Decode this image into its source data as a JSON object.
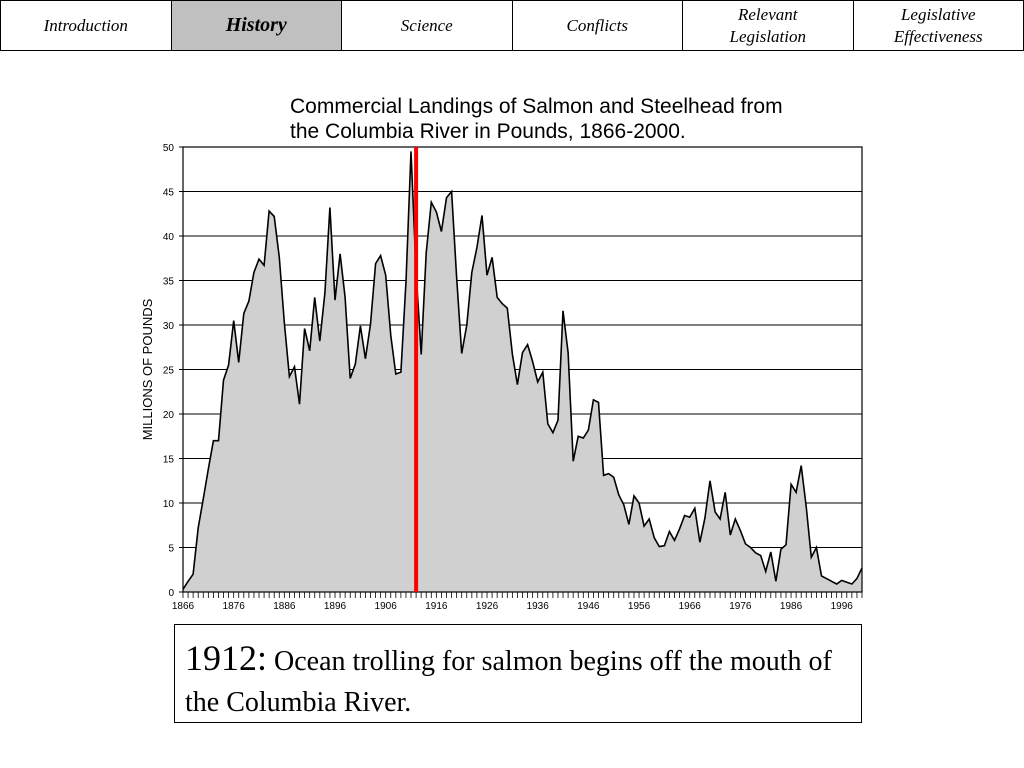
{
  "nav": {
    "tabs": [
      {
        "label": "Introduction",
        "active": false
      },
      {
        "label": "History",
        "active": true
      },
      {
        "label": "Science",
        "active": false
      },
      {
        "label": "Conflicts",
        "active": false
      },
      {
        "label": "Relevant\nLegislation",
        "active": false
      },
      {
        "label": "Legislative\nEffectiveness",
        "active": false
      }
    ]
  },
  "chart_data": {
    "type": "area",
    "title": "Commercial Landings of Salmon and Steelhead from\n the Columbia River in Pounds, 1866-2000.",
    "xlabel": "",
    "ylabel": "MILLIONS OF POUNDS",
    "ylim": [
      0,
      50
    ],
    "xlim": [
      1866,
      2000
    ],
    "yticks": [
      0,
      5,
      10,
      15,
      20,
      25,
      30,
      35,
      40,
      45,
      50
    ],
    "xticks": [
      1866,
      1876,
      1886,
      1896,
      1906,
      1916,
      1926,
      1936,
      1946,
      1956,
      1966,
      1976,
      1986,
      1996
    ],
    "grid": true,
    "fill_color": "#d0d0d0",
    "line_color": "#000000",
    "marker_color": "#ff0000",
    "marker_year": 1912,
    "series": [
      {
        "x": [
          1866,
          1867,
          1868,
          1869,
          1870,
          1871,
          1872,
          1873,
          1874,
          1875,
          1876,
          1877,
          1878,
          1879,
          1880,
          1881,
          1882,
          1883,
          1884,
          1885,
          1886,
          1887,
          1888,
          1889,
          1890,
          1891,
          1892,
          1893,
          1894,
          1895,
          1896,
          1897,
          1898,
          1899,
          1900,
          1901,
          1902,
          1903,
          1904,
          1905,
          1906,
          1907,
          1908,
          1909,
          1910,
          1911,
          1912,
          1913,
          1914,
          1915,
          1916,
          1917,
          1918,
          1919,
          1920,
          1921,
          1922,
          1923,
          1924,
          1925,
          1926,
          1927,
          1928,
          1929,
          1930,
          1931,
          1932,
          1933,
          1934,
          1935,
          1936,
          1937,
          1938,
          1939,
          1940,
          1941,
          1942,
          1943,
          1944,
          1945,
          1946,
          1947,
          1948,
          1949,
          1950,
          1951,
          1952,
          1953,
          1954,
          1955,
          1956,
          1957,
          1958,
          1959,
          1960,
          1961,
          1962,
          1963,
          1964,
          1965,
          1966,
          1967,
          1968,
          1969,
          1970,
          1971,
          1972,
          1973,
          1974,
          1975,
          1976,
          1977,
          1978,
          1979,
          1980,
          1981,
          1982,
          1983,
          1984,
          1985,
          1986,
          1987,
          1988,
          1989,
          1990,
          1991,
          1992,
          1993,
          1994,
          1995,
          1996,
          1997,
          1998,
          1999,
          2000
        ],
        "values": [
          0.3,
          1.2,
          2.0,
          7.2,
          10.5,
          13.8,
          17.0,
          17.0,
          23.8,
          25.5,
          30.5,
          25.8,
          31.3,
          32.7,
          35.9,
          37.4,
          36.7,
          42.8,
          42.2,
          37.6,
          30.3,
          24.2,
          25.3,
          21.1,
          29.6,
          27.1,
          33.1,
          28.2,
          33.6,
          43.2,
          32.8,
          38.0,
          33.1,
          24.0,
          25.6,
          29.9,
          26.2,
          30.1,
          36.9,
          37.8,
          35.6,
          28.8,
          24.5,
          24.7,
          34.9,
          49.5,
          35.9,
          26.7,
          38.1,
          43.8,
          42.7,
          40.5,
          44.3,
          45.0,
          35.4,
          26.8,
          30.0,
          35.9,
          38.7,
          42.3,
          35.6,
          37.6,
          33.1,
          32.4,
          31.9,
          26.7,
          23.3,
          26.9,
          27.8,
          25.9,
          23.6,
          24.7,
          18.9,
          17.9,
          19.3,
          31.6,
          26.9,
          14.7,
          17.5,
          17.3,
          18.2,
          21.6,
          21.3,
          13.1,
          13.3,
          12.9,
          10.9,
          9.8,
          7.6,
          10.8,
          10.0,
          7.4,
          8.2,
          6.1,
          5.1,
          5.2,
          6.8,
          5.8,
          7.1,
          8.6,
          8.4,
          9.4,
          5.6,
          8.3,
          12.5,
          9.0,
          8.2,
          11.2,
          6.4,
          8.2,
          6.9,
          5.4,
          5.0,
          4.4,
          4.1,
          2.3,
          4.5,
          1.2,
          4.8,
          5.3,
          12.1,
          11.2,
          14.2,
          9.5,
          3.9,
          5.0,
          1.8,
          1.5,
          1.2,
          0.9,
          1.3,
          1.1,
          0.9,
          1.5,
          2.7
        ]
      }
    ]
  },
  "caption": {
    "year": "1912:",
    "text": " Ocean trolling for salmon begins off the mouth of the Columbia River."
  }
}
